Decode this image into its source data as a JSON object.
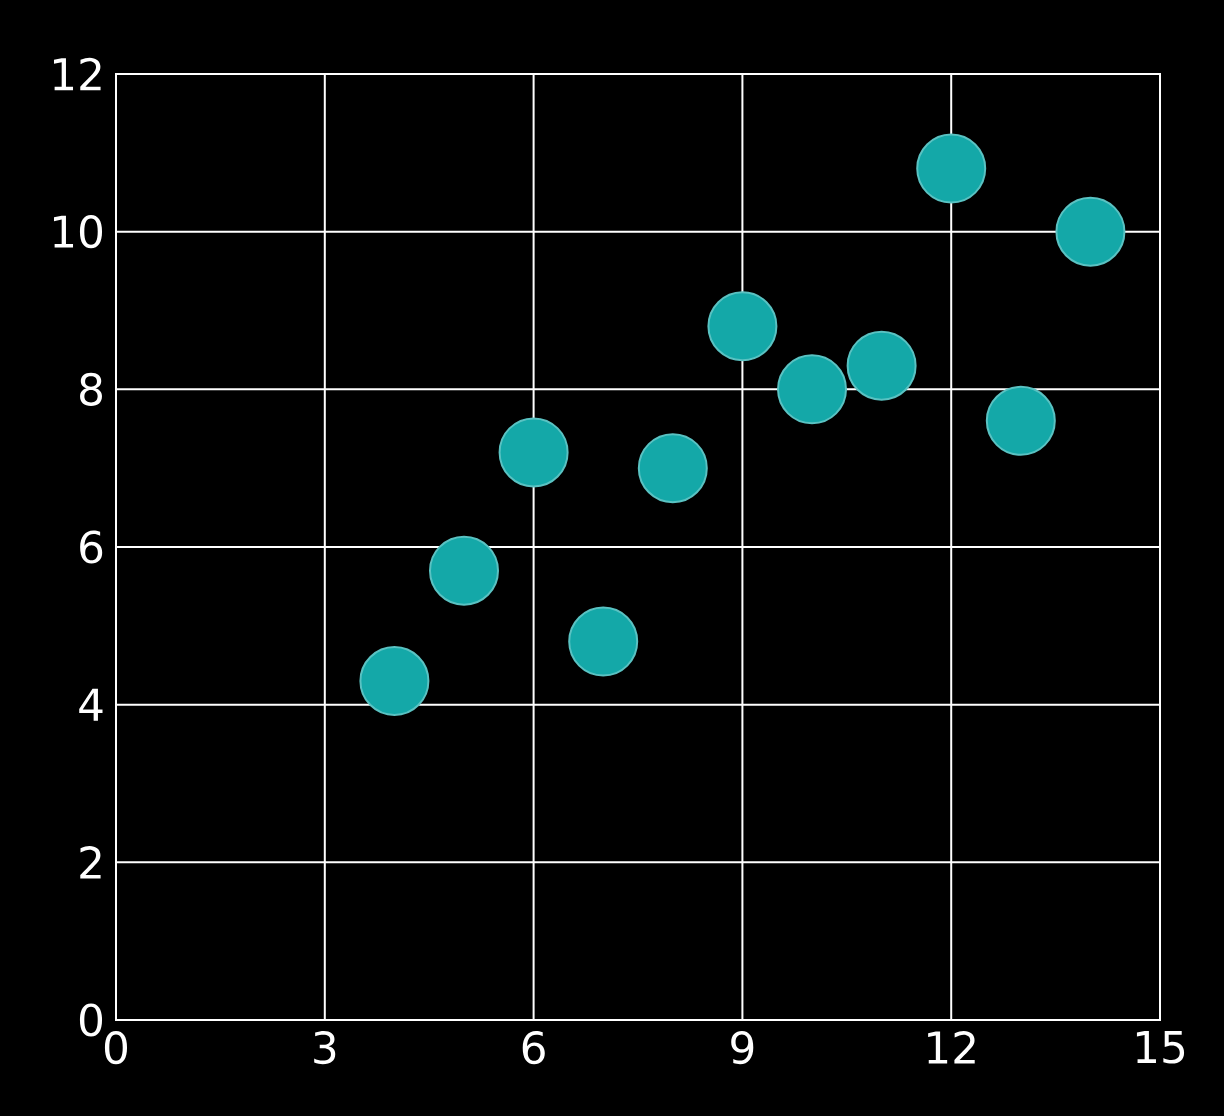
{
  "chart_data": {
    "type": "scatter",
    "x": [
      10,
      8,
      13,
      9,
      11,
      14,
      6,
      4,
      12,
      7,
      5
    ],
    "values": [
      8.0,
      7.0,
      7.6,
      8.8,
      8.3,
      10.0,
      7.2,
      4.3,
      10.8,
      4.8,
      5.7
    ],
    "color": "#14a8a8",
    "marker": "circle",
    "grid": true,
    "xlim": [
      0,
      15
    ],
    "ylim": [
      0,
      12
    ],
    "xticks": [
      0,
      3,
      6,
      9,
      12,
      15
    ],
    "yticks": [
      0,
      2,
      4,
      6,
      8,
      10,
      12
    ]
  }
}
